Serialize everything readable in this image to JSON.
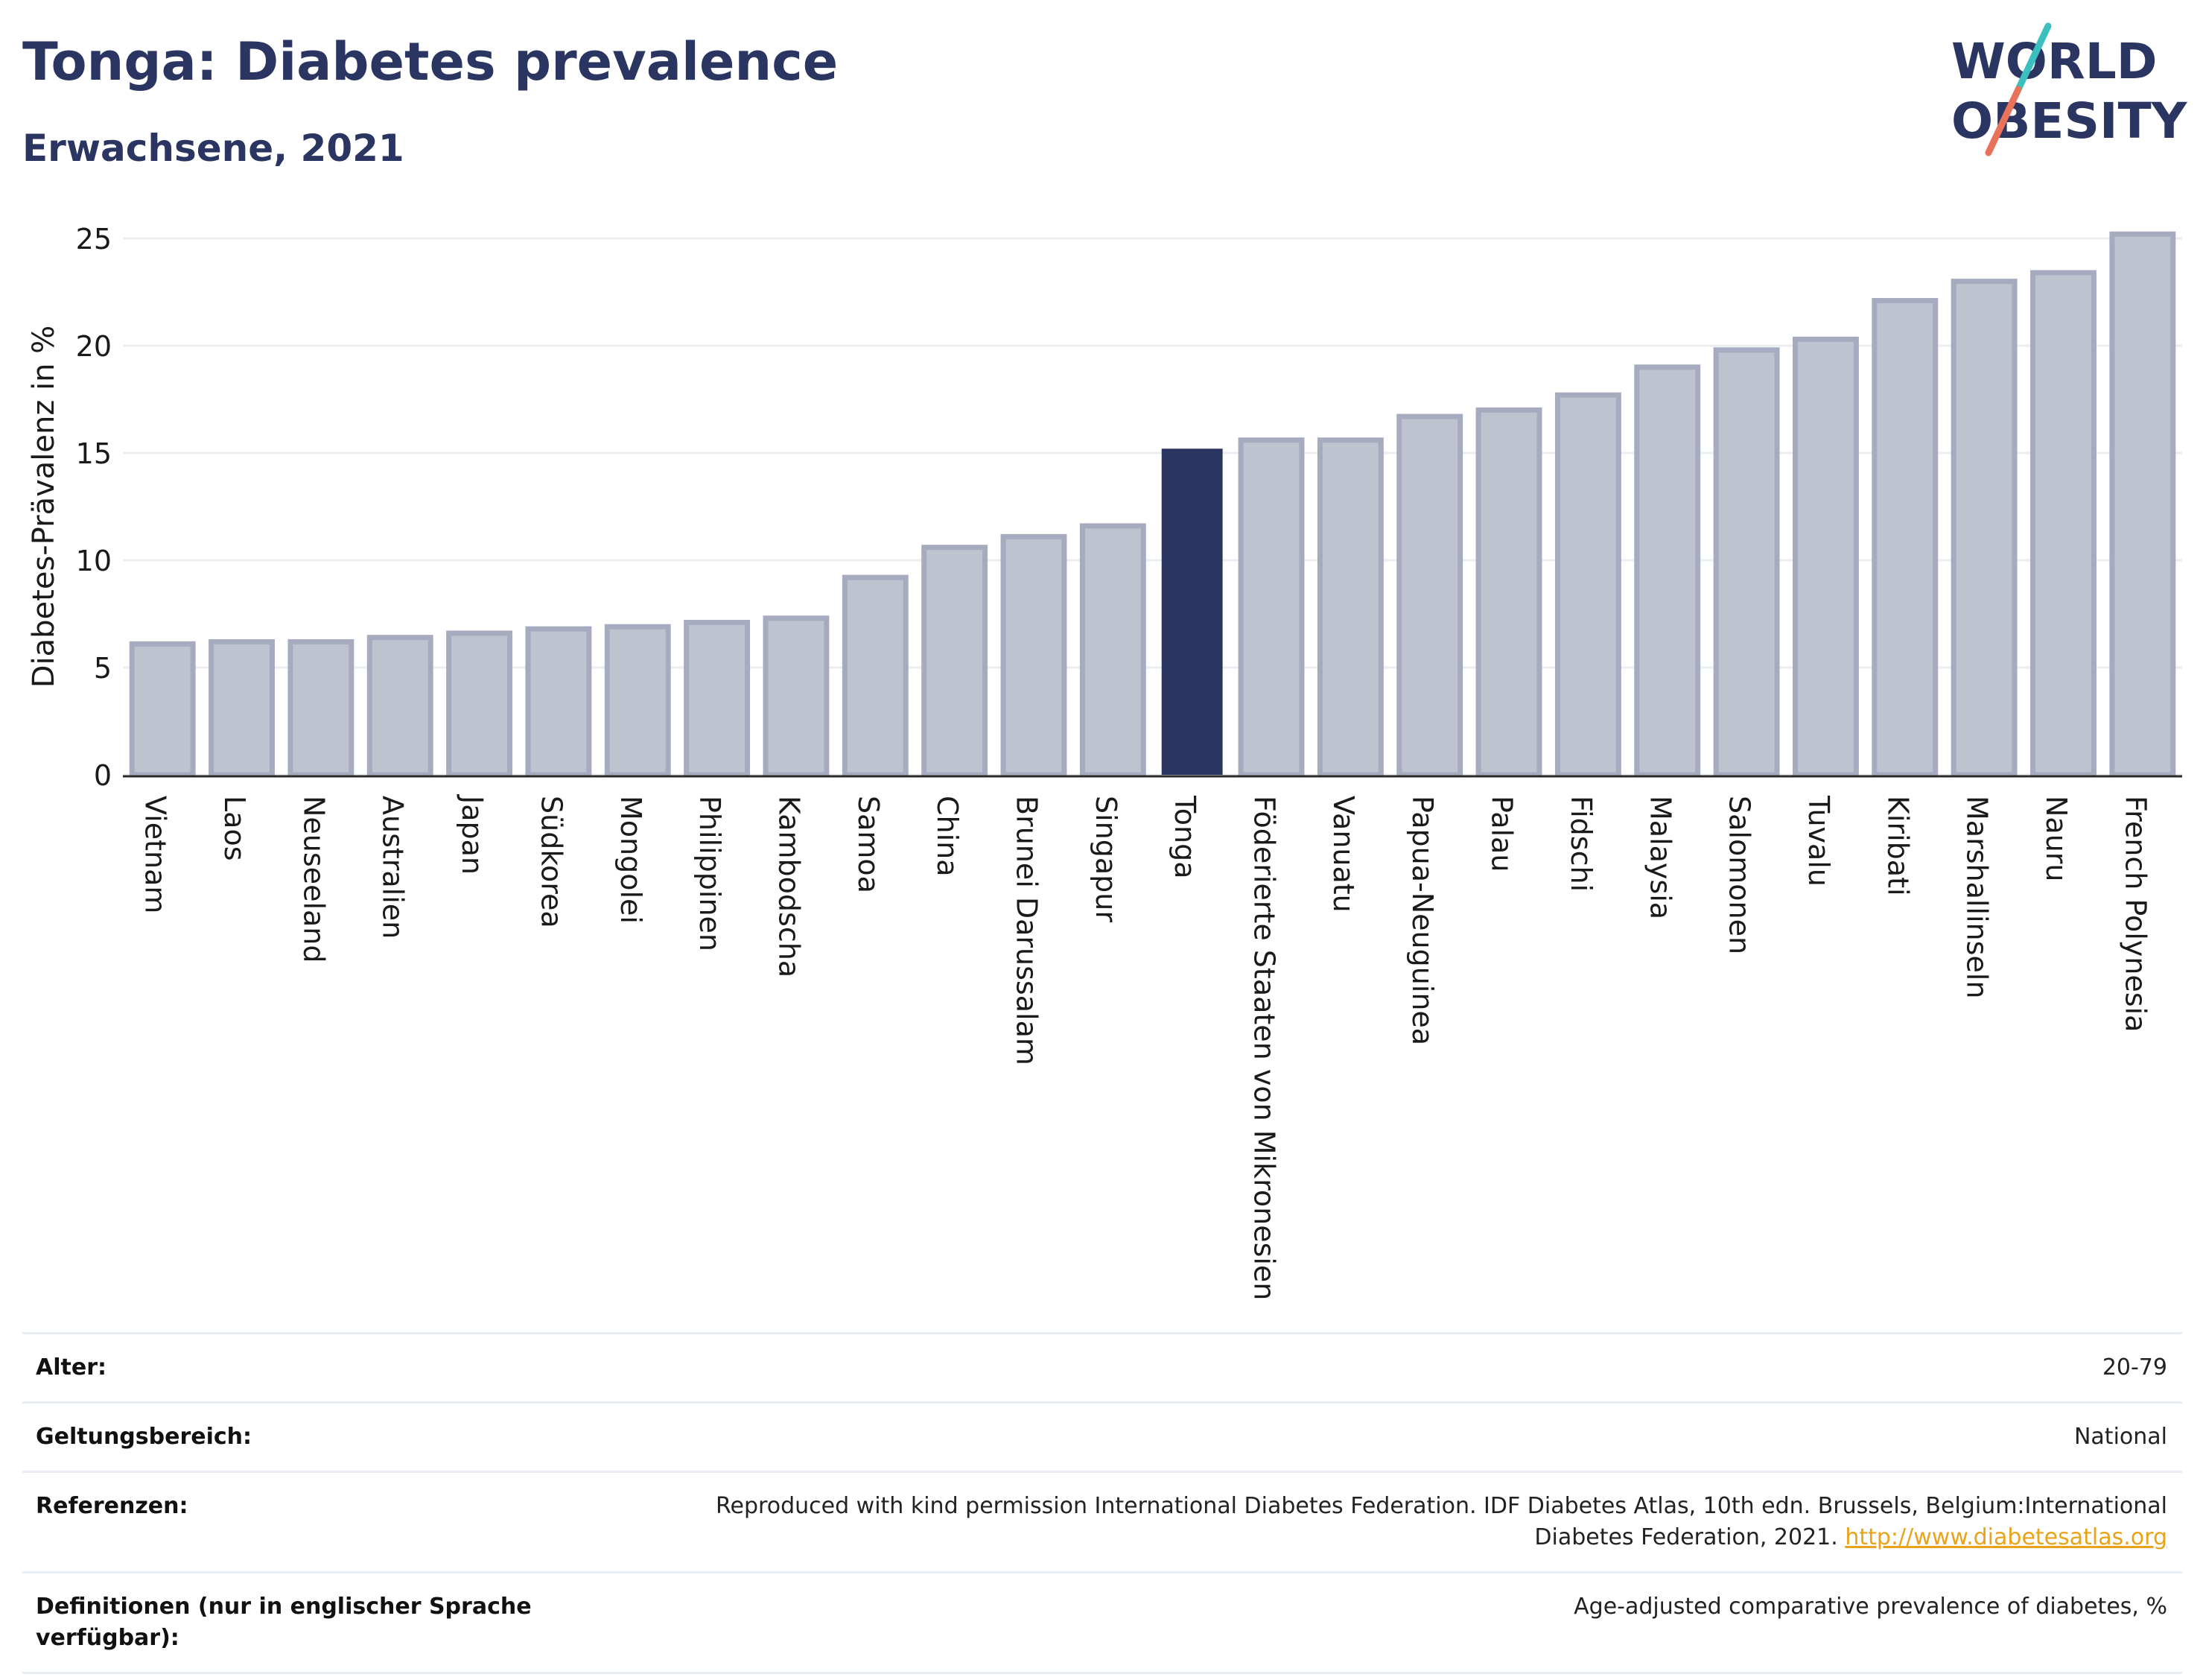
{
  "header": {
    "title": "Tonga: Diabetes prevalence",
    "subtitle": "Erwachsene, 2021"
  },
  "logo": {
    "line1": "WORLD",
    "line2": "OBESITY",
    "icon": "world-obesity-logo-icon"
  },
  "colors": {
    "accent": "#2b3561",
    "bar_other": "#bfc2cf",
    "bar_other_border": "#a6abbf",
    "highlight": "#2b3561",
    "logo_slash_top": "#3bbfbf",
    "logo_slash_bottom": "#e8735a",
    "link": "#e8a319"
  },
  "chart_data": {
    "type": "bar",
    "title": "Tonga: Diabetes prevalence",
    "subtitle": "Erwachsene, 2021",
    "xlabel": "",
    "ylabel": "Diabetes-Prävalenz in %",
    "ylim": [
      0,
      26
    ],
    "yticks": [
      0,
      5,
      10,
      15,
      20,
      25
    ],
    "grid": true,
    "highlight": "Tonga",
    "categories": [
      "Vietnam",
      "Laos",
      "Neuseeland",
      "Australien",
      "Japan",
      "Südkorea",
      "Mongolei",
      "Philippinen",
      "Kambodscha",
      "Samoa",
      "China",
      "Brunei Darussalam",
      "Singapur",
      "Tonga",
      "Föderierte Staaten von Mikronesien",
      "Vanuatu",
      "Papua-Neuguinea",
      "Palau",
      "Fidschi",
      "Malaysia",
      "Salomonen",
      "Tuvalu",
      "Kiribati",
      "Marshallinseln",
      "Nauru",
      "French Polynesia"
    ],
    "values": [
      6.1,
      6.2,
      6.2,
      6.4,
      6.6,
      6.8,
      6.9,
      7.1,
      7.3,
      9.2,
      10.6,
      11.1,
      11.6,
      15.2,
      15.6,
      15.6,
      16.7,
      17.0,
      17.7,
      19.0,
      19.8,
      20.3,
      22.1,
      23.0,
      23.4,
      25.2
    ]
  },
  "info": {
    "rows": [
      {
        "key": "Alter:",
        "value": "20-79"
      },
      {
        "key": "Geltungsbereich:",
        "value": "National"
      },
      {
        "key": "Referenzen:",
        "value": "Reproduced with kind permission International Diabetes Federation.  IDF Diabetes Atlas, 10th edn. Brussels, Belgium:International Diabetes Federation, 2021. ",
        "link": "http://www.diabetesatlas.org"
      },
      {
        "key": "Definitionen (nur in englischer Sprache verfügbar):",
        "value": "Age-adjusted comparative prevalence of diabetes, %"
      }
    ]
  }
}
